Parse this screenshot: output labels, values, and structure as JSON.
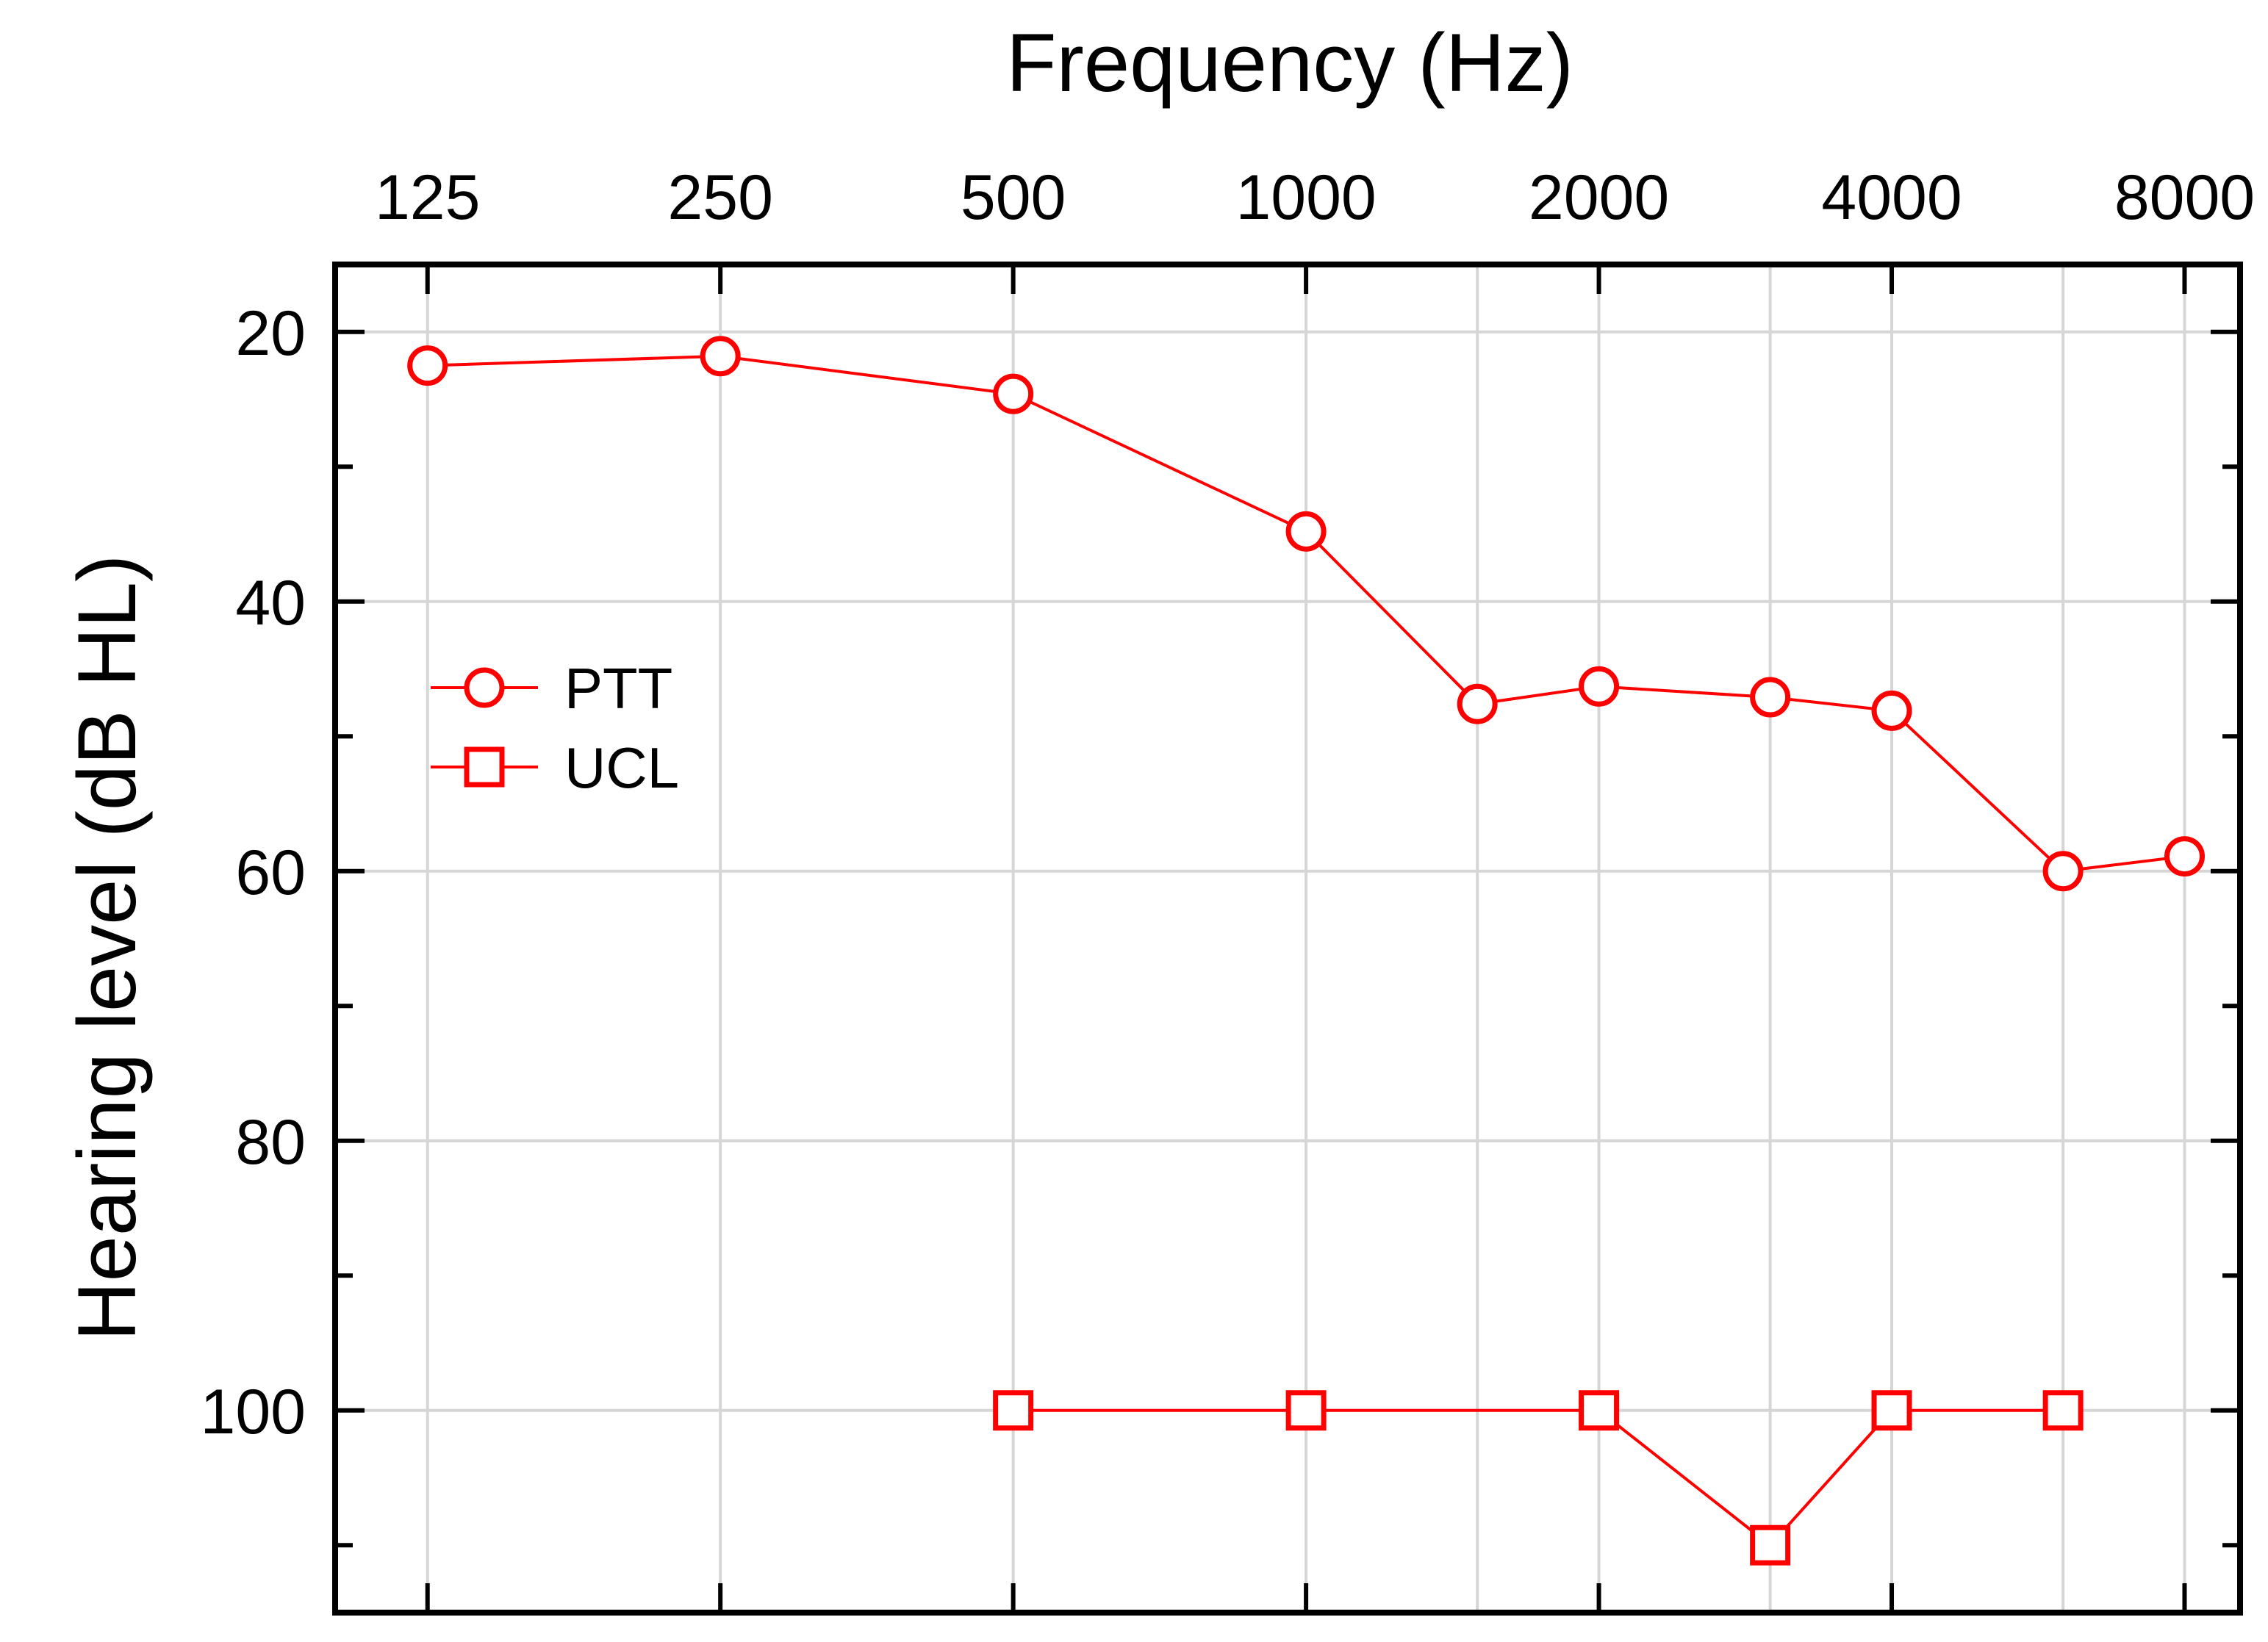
{
  "chart_data": {
    "type": "line",
    "title": "",
    "xlabel": "Frequency (Hz)",
    "ylabel": "Hearing level (dB HL)",
    "x_scale": "log2",
    "x_axis_position": "top",
    "y_inverted": true,
    "xlim_octaves_from_125": [
      -0.3155,
      6.1895
    ],
    "ylim": [
      15,
      115
    ],
    "x_ticks": [
      125,
      250,
      500,
      1000,
      2000,
      4000,
      8000
    ],
    "x_tick_labels": [
      "125",
      "250",
      "500",
      "1000",
      "2000",
      "4000",
      "8000"
    ],
    "x_minor_grid": [
      1500,
      3000,
      6000
    ],
    "y_ticks": [
      20,
      40,
      60,
      80,
      100
    ],
    "y_tick_labels": [
      "20",
      "40",
      "60",
      "80",
      "100"
    ],
    "y_minor_ticks": [
      30,
      50,
      70,
      90,
      110
    ],
    "grid": true,
    "legend_position": "upper-left",
    "series": [
      {
        "name": "PTT",
        "marker": "circle",
        "color": "#ff0000",
        "x": [
          125,
          250,
          500,
          1000,
          1500,
          2000,
          3000,
          4000,
          6000,
          8000
        ],
        "y": [
          22.5,
          21.8,
          24.6,
          34.8,
          47.6,
          46.3,
          47.1,
          48.1,
          60.0,
          58.9
        ]
      },
      {
        "name": "UCL",
        "marker": "square",
        "color": "#ff0000",
        "x": [
          500,
          1000,
          2000,
          3000,
          4000,
          6000
        ],
        "y": [
          100,
          100,
          100,
          110,
          100,
          100
        ]
      }
    ]
  }
}
